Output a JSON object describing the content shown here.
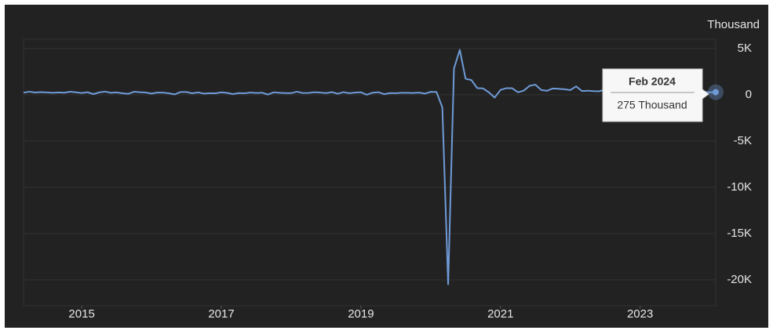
{
  "chart_data": {
    "type": "line",
    "unit_label": "Thousand",
    "x": [
      "2014-03",
      "2014-04",
      "2014-05",
      "2014-06",
      "2014-07",
      "2014-08",
      "2014-09",
      "2014-10",
      "2014-11",
      "2014-12",
      "2015-01",
      "2015-02",
      "2015-03",
      "2015-04",
      "2015-05",
      "2015-06",
      "2015-07",
      "2015-08",
      "2015-09",
      "2015-10",
      "2015-11",
      "2015-12",
      "2016-01",
      "2016-02",
      "2016-03",
      "2016-04",
      "2016-05",
      "2016-06",
      "2016-07",
      "2016-08",
      "2016-09",
      "2016-10",
      "2016-11",
      "2016-12",
      "2017-01",
      "2017-02",
      "2017-03",
      "2017-04",
      "2017-05",
      "2017-06",
      "2017-07",
      "2017-08",
      "2017-09",
      "2017-10",
      "2017-11",
      "2017-12",
      "2018-01",
      "2018-02",
      "2018-03",
      "2018-04",
      "2018-05",
      "2018-06",
      "2018-07",
      "2018-08",
      "2018-09",
      "2018-10",
      "2018-11",
      "2018-12",
      "2019-01",
      "2019-02",
      "2019-03",
      "2019-04",
      "2019-05",
      "2019-06",
      "2019-07",
      "2019-08",
      "2019-09",
      "2019-10",
      "2019-11",
      "2019-12",
      "2020-01",
      "2020-02",
      "2020-03",
      "2020-04",
      "2020-05",
      "2020-06",
      "2020-07",
      "2020-08",
      "2020-09",
      "2020-10",
      "2020-11",
      "2020-12",
      "2021-01",
      "2021-02",
      "2021-03",
      "2021-04",
      "2021-05",
      "2021-06",
      "2021-07",
      "2021-08",
      "2021-09",
      "2021-10",
      "2021-11",
      "2021-12",
      "2022-01",
      "2022-02",
      "2022-03",
      "2022-04",
      "2022-05",
      "2022-06",
      "2022-07",
      "2022-08",
      "2022-09",
      "2022-10",
      "2022-11",
      "2022-12",
      "2023-01",
      "2023-02",
      "2023-03",
      "2023-04",
      "2023-05",
      "2023-06",
      "2023-07",
      "2023-08",
      "2023-09",
      "2023-10",
      "2023-11",
      "2023-12",
      "2024-01",
      "2024-02"
    ],
    "values": [
      225,
      330,
      236,
      286,
      249,
      213,
      250,
      221,
      321,
      260,
      190,
      271,
      70,
      251,
      339,
      206,
      254,
      157,
      100,
      321,
      272,
      239,
      126,
      237,
      225,
      153,
      38,
      297,
      291,
      157,
      249,
      124,
      164,
      155,
      259,
      195,
      73,
      175,
      155,
      239,
      190,
      221,
      18,
      257,
      210,
      175,
      171,
      330,
      182,
      196,
      270,
      235,
      173,
      282,
      108,
      277,
      170,
      227,
      269,
      1,
      215,
      275,
      62,
      180,
      166,
      207,
      208,
      185,
      230,
      120,
      315,
      289,
      -1373,
      -20477,
      2833,
      4846,
      1726,
      1583,
      716,
      680,
      263,
      -306,
      520,
      710,
      704,
      269,
      447,
      962,
      1091,
      517,
      424,
      677,
      647,
      588,
      504,
      904,
      398,
      436,
      390,
      370,
      568,
      352,
      350,
      324,
      290,
      239,
      482,
      248,
      217,
      281,
      303,
      240,
      236,
      165,
      262,
      165,
      182,
      290,
      256,
      275
    ],
    "color": "#6f9bd8",
    "xlim": [
      "2014-03",
      "2024-02"
    ],
    "xticks": [
      {
        "value": "2015-01",
        "label": "2015"
      },
      {
        "value": "2017-01",
        "label": "2017"
      },
      {
        "value": "2019-01",
        "label": "2019"
      },
      {
        "value": "2021-01",
        "label": "2021"
      },
      {
        "value": "2023-01",
        "label": "2023"
      }
    ],
    "ylim": [
      -22800,
      6000
    ],
    "yticks": [
      {
        "value": 5000,
        "label": "5K"
      },
      0,
      {
        "value": -5000,
        "label": "-5K"
      },
      {
        "value": -10000,
        "label": "-10K"
      },
      {
        "value": -15000,
        "label": "-15K"
      },
      {
        "value": -20000,
        "label": "-20K"
      }
    ],
    "grid": true,
    "tooltip": {
      "title": "Feb 2024",
      "text": "275 Thousand"
    }
  }
}
